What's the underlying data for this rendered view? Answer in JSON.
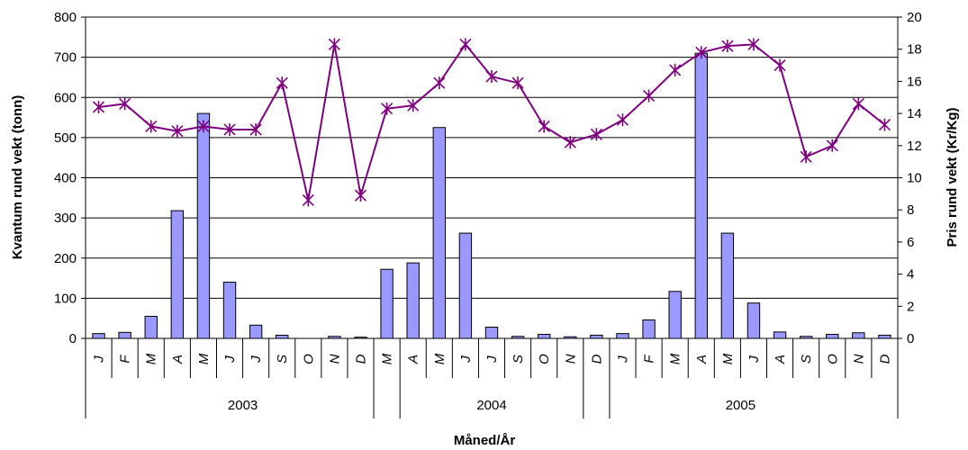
{
  "chart_data": {
    "type": "bar",
    "xlabel": "Måned/År",
    "ylabel_left": "Kvantum rund vekt (tonn)",
    "ylabel_right": "Pris rund vekt (Kr/Kg)",
    "ylim_left": [
      0,
      800
    ],
    "ylim_right": [
      0,
      20
    ],
    "yticks_left": [
      "0",
      "100",
      "200",
      "300",
      "400",
      "500",
      "600",
      "700",
      "800"
    ],
    "yticks_right": [
      "0",
      "2",
      "4",
      "6",
      "8",
      "10",
      "12",
      "14",
      "16",
      "18",
      "20"
    ],
    "grid": true,
    "years": [
      {
        "label": "2003",
        "start": 0,
        "end": 11
      },
      {
        "label": "2004",
        "start": 11,
        "end": 19
      },
      {
        "label": "2005",
        "start": 19,
        "end": 30
      }
    ],
    "categories": [
      "J",
      "F",
      "M",
      "A",
      "M",
      "J",
      "J",
      "S",
      "O",
      "N",
      "D",
      "M",
      "A",
      "M",
      "J",
      "J",
      "S",
      "O",
      "N",
      "D",
      "J",
      "F",
      "M",
      "A",
      "M",
      "J",
      "A",
      "S",
      "O",
      "N",
      "D"
    ],
    "series": [
      {
        "type": "bar",
        "axis": "left",
        "color": "#9999ff",
        "values": [
          12,
          15,
          55,
          318,
          560,
          140,
          33,
          8,
          0,
          5,
          3,
          172,
          188,
          525,
          262,
          28,
          5,
          10,
          4,
          8,
          12,
          46,
          117,
          710,
          262,
          88,
          16,
          5,
          10,
          14,
          8
        ]
      },
      {
        "type": "line",
        "axis": "right",
        "color": "#800080",
        "values": [
          14.4,
          14.6,
          13.2,
          12.9,
          13.2,
          13.0,
          13.0,
          15.9,
          8.6,
          18.3,
          8.9,
          14.3,
          14.5,
          15.9,
          18.3,
          16.3,
          15.9,
          13.2,
          12.2,
          12.7,
          13.6,
          15.1,
          16.7,
          17.8,
          18.2,
          18.3,
          17.0,
          11.3,
          12.0,
          14.6,
          13.3
        ]
      }
    ]
  }
}
